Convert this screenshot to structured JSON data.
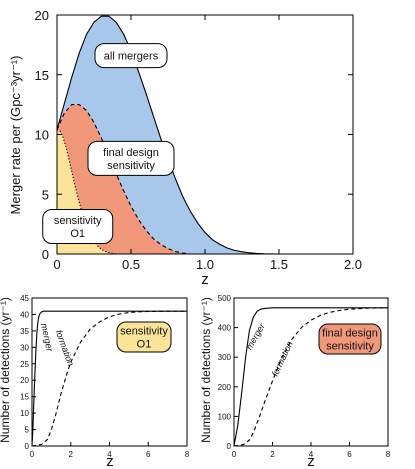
{
  "chart_data": [
    {
      "type": "area",
      "xlabel": "z",
      "ylabel": "Merger rate per (Gpc⁻³yr⁻¹)",
      "xlim": [
        0,
        2
      ],
      "ylim": [
        0,
        20
      ],
      "xticks": [
        "0",
        "0.5",
        "1.0",
        "1.5",
        "2.0"
      ],
      "yticks": [
        "0",
        "5",
        "10",
        "15",
        "20"
      ],
      "grid": false,
      "series": [
        {
          "name": "all mergers",
          "color": "#a7c8ea",
          "line": "solid",
          "x": [
            0,
            0.05,
            0.1,
            0.15,
            0.2,
            0.25,
            0.3,
            0.35,
            0.4,
            0.45,
            0.5,
            0.55,
            0.6,
            0.65,
            0.7,
            0.75,
            0.8,
            0.85,
            0.9,
            0.95,
            1.0,
            1.05,
            1.1,
            1.15,
            1.2,
            1.25,
            1.3,
            1.35,
            1.4,
            1.45,
            1.5
          ],
          "values": [
            10.4,
            12.6,
            14.8,
            16.8,
            18.4,
            19.4,
            19.9,
            19.9,
            19.4,
            18.4,
            17.0,
            15.3,
            13.5,
            11.6,
            9.7,
            7.9,
            6.3,
            4.8,
            3.6,
            2.6,
            1.8,
            1.2,
            0.8,
            0.5,
            0.3,
            0.18,
            0.1,
            0.05,
            0.02,
            0.01,
            0.0
          ]
        },
        {
          "name": "final design sensitivity",
          "color": "#f2987a",
          "line": "dashed",
          "x": [
            0,
            0.05,
            0.1,
            0.15,
            0.2,
            0.25,
            0.3,
            0.35,
            0.4,
            0.45,
            0.5,
            0.55,
            0.6,
            0.65,
            0.7,
            0.75,
            0.8,
            0.85,
            0.9
          ],
          "values": [
            10.4,
            11.8,
            12.5,
            12.5,
            12.0,
            11.0,
            9.7,
            8.2,
            6.7,
            5.3,
            4.0,
            2.9,
            2.0,
            1.3,
            0.8,
            0.45,
            0.2,
            0.08,
            0.0
          ]
        },
        {
          "name": "sensitivity O1",
          "color": "#fbe49a",
          "line": "dotted",
          "x": [
            0,
            0.02,
            0.04,
            0.06,
            0.08,
            0.1,
            0.12,
            0.14,
            0.16,
            0.18,
            0.2,
            0.22,
            0.24,
            0.26,
            0.28,
            0.3,
            0.32,
            0.34,
            0.36,
            0.38,
            0.4
          ],
          "values": [
            10.4,
            10.3,
            9.8,
            9.0,
            8.0,
            6.9,
            5.8,
            4.8,
            3.9,
            3.1,
            2.4,
            1.8,
            1.3,
            0.9,
            0.6,
            0.4,
            0.25,
            0.15,
            0.08,
            0.03,
            0.0
          ]
        }
      ],
      "annotations": [
        "all mergers",
        "final design\nsensitivity",
        "sensitivity\nO1"
      ]
    },
    {
      "type": "line",
      "xlabel": "z",
      "ylabel": "Number of detections (yr⁻¹)",
      "xlim": [
        0,
        8
      ],
      "ylim": [
        0,
        45
      ],
      "xticks": [
        "0",
        "2",
        "4",
        "6",
        "8"
      ],
      "yticks": [
        "0",
        "5",
        "10",
        "15",
        "20",
        "25",
        "30",
        "35",
        "40",
        "45"
      ],
      "box_label": "sensitivity\nO1",
      "box_color": "#fbe49a",
      "series": [
        {
          "name": "merger",
          "line": "solid",
          "x": [
            0,
            0.05,
            0.1,
            0.15,
            0.2,
            0.25,
            0.3,
            0.35,
            0.4,
            0.5,
            0.6,
            1.0,
            8.0
          ],
          "values": [
            0,
            6,
            14,
            22,
            29,
            34,
            37.5,
            39.3,
            40.2,
            40.8,
            41.0,
            41.0,
            41.0
          ]
        },
        {
          "name": "formation",
          "line": "dashed",
          "x": [
            0,
            0.5,
            0.8,
            1.0,
            1.2,
            1.5,
            1.8,
            2.0,
            2.5,
            3.0,
            3.5,
            4.0,
            4.5,
            5.0,
            5.5,
            6.0,
            7.0,
            8.0
          ],
          "values": [
            0,
            0.5,
            2,
            5,
            9,
            16,
            22,
            25.5,
            31.5,
            35.5,
            37.8,
            39.3,
            40.1,
            40.6,
            40.8,
            40.9,
            41.0,
            41.0
          ]
        }
      ]
    },
    {
      "type": "line",
      "xlabel": "z",
      "ylabel": "Number of detections (yr⁻¹)",
      "xlim": [
        0,
        8
      ],
      "ylim": [
        0,
        500
      ],
      "xticks": [
        "0",
        "2",
        "4",
        "6",
        "8"
      ],
      "yticks": [
        "0",
        "100",
        "200",
        "300",
        "400",
        "500"
      ],
      "box_label": "final design\nsensitivity",
      "box_color": "#f2987a",
      "series": [
        {
          "name": "merger",
          "line": "solid",
          "x": [
            0,
            0.2,
            0.4,
            0.6,
            0.8,
            1.0,
            1.2,
            1.4,
            1.6,
            2.0,
            8.0
          ],
          "values": [
            0,
            70,
            180,
            300,
            390,
            435,
            455,
            462,
            465,
            467,
            467
          ]
        },
        {
          "name": "formation",
          "line": "dashed",
          "x": [
            0,
            0.5,
            0.8,
            1.0,
            1.3,
            1.6,
            2.0,
            2.5,
            3.0,
            3.5,
            4.0,
            4.5,
            5.0,
            5.5,
            6.0,
            6.5,
            7.0,
            8.0
          ],
          "values": [
            0,
            5,
            20,
            45,
            95,
            150,
            220,
            300,
            360,
            400,
            425,
            442,
            452,
            458,
            462,
            464,
            466,
            467
          ]
        }
      ]
    }
  ]
}
